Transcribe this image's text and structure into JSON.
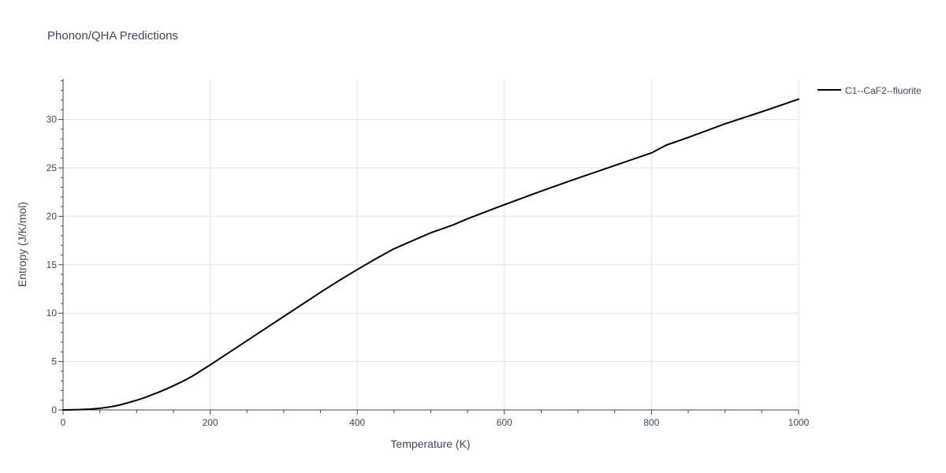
{
  "chart_data": {
    "type": "line",
    "title": "Phonon/QHA Predictions",
    "xlabel": "Temperature (K)",
    "ylabel": "Entropy (J/K/mol)",
    "xlim": [
      0,
      1000
    ],
    "ylim": [
      0,
      34.2
    ],
    "xticks": [
      0,
      200,
      400,
      600,
      800,
      1000
    ],
    "yticks": [
      0,
      5,
      10,
      15,
      20,
      25,
      30
    ],
    "xtick_labels": [
      "0",
      "200",
      "400",
      "600",
      "800",
      "1000"
    ],
    "ytick_labels": [
      "0",
      "5",
      "10",
      "15",
      "20",
      "25",
      "30"
    ],
    "grid": true,
    "legend_position": "top-right",
    "series": [
      {
        "name": "C1--CaF2--fluorite",
        "color": "#000000",
        "x": [
          0,
          10,
          20,
          30,
          40,
          50,
          60,
          70,
          80,
          90,
          100,
          110,
          120,
          130,
          140,
          150,
          160,
          175,
          200,
          225,
          250,
          275,
          300,
          325,
          350,
          375,
          400,
          425,
          450,
          500,
          530,
          550,
          600,
          650,
          700,
          735,
          750,
          800,
          820,
          850,
          900,
          950,
          1000
        ],
        "y": [
          0,
          0.01,
          0.03,
          0.06,
          0.1,
          0.17,
          0.27,
          0.4,
          0.57,
          0.78,
          1.0,
          1.25,
          1.54,
          1.83,
          2.15,
          2.5,
          2.85,
          3.45,
          4.65,
          5.9,
          7.15,
          8.4,
          9.65,
          10.9,
          12.15,
          13.35,
          14.5,
          15.6,
          16.65,
          18.3,
          19.1,
          19.75,
          21.2,
          22.6,
          23.95,
          24.85,
          25.25,
          26.55,
          27.35,
          28.15,
          29.55,
          30.8,
          32.1
        ]
      }
    ]
  }
}
